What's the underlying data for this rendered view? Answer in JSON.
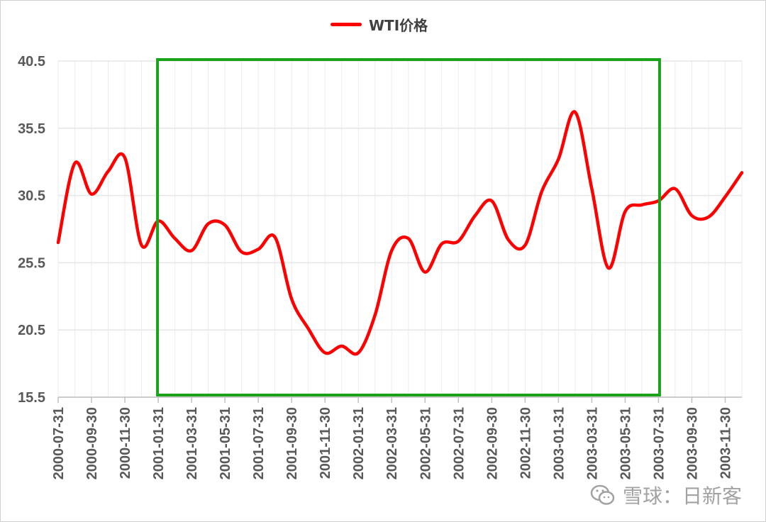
{
  "chart_data": {
    "type": "line",
    "title": "",
    "xlabel": "",
    "ylabel": "",
    "ylim": [
      15.5,
      40.5
    ],
    "yticks": [
      "15.5",
      "20.5",
      "25.5",
      "30.5",
      "35.5",
      "40.5"
    ],
    "grid": true,
    "legend_position": "top-center",
    "series": [
      {
        "name": "WTI价格",
        "color": "#ff0000",
        "x": [
          "2000-07-31",
          "2000-08-31",
          "2000-09-30",
          "2000-10-31",
          "2000-11-30",
          "2000-12-31",
          "2001-01-31",
          "2001-02-28",
          "2001-03-31",
          "2001-04-30",
          "2001-05-31",
          "2001-06-30",
          "2001-07-31",
          "2001-08-31",
          "2001-09-30",
          "2001-10-31",
          "2001-11-30",
          "2001-12-31",
          "2002-01-31",
          "2002-02-28",
          "2002-03-31",
          "2002-04-30",
          "2002-05-31",
          "2002-06-30",
          "2002-07-31",
          "2002-08-31",
          "2002-09-30",
          "2002-10-31",
          "2002-11-30",
          "2002-12-31",
          "2003-01-31",
          "2003-02-28",
          "2003-03-31",
          "2003-04-30",
          "2003-05-31",
          "2003-06-30",
          "2003-07-31",
          "2003-08-31",
          "2003-09-30",
          "2003-10-31",
          "2003-11-30",
          "2003-12-31"
        ],
        "values": [
          27.0,
          32.9,
          30.6,
          32.3,
          33.3,
          26.8,
          28.6,
          27.3,
          26.4,
          28.4,
          28.3,
          26.3,
          26.5,
          27.4,
          22.8,
          20.6,
          18.8,
          19.3,
          18.8,
          21.6,
          26.4,
          27.3,
          24.8,
          26.9,
          27.1,
          29.0,
          30.1,
          27.2,
          26.8,
          30.8,
          33.2,
          36.7,
          31.0,
          25.1,
          29.3,
          29.8,
          30.1,
          31.0,
          29.0,
          28.9,
          30.4,
          32.2
        ]
      }
    ],
    "xtick_labels": [
      "2000-07-31",
      "2000-09-30",
      "2000-11-30",
      "2001-01-31",
      "2001-03-31",
      "2001-05-31",
      "2001-07-31",
      "2001-09-30",
      "2001-11-30",
      "2002-01-31",
      "2002-03-31",
      "2002-05-31",
      "2002-07-31",
      "2002-09-30",
      "2002-11-30",
      "2003-01-31",
      "2003-03-31",
      "2003-05-31",
      "2003-07-31",
      "2003-09-30",
      "2003-11-30"
    ],
    "highlight_box": {
      "from": "2001-01-31",
      "to": "2003-06-30",
      "color": "#1aa31a"
    }
  },
  "legend": {
    "label": "WTI价格",
    "color": "#ff0000"
  },
  "watermark": {
    "text": "雪球：日新客",
    "icon": "wechat-icon"
  }
}
